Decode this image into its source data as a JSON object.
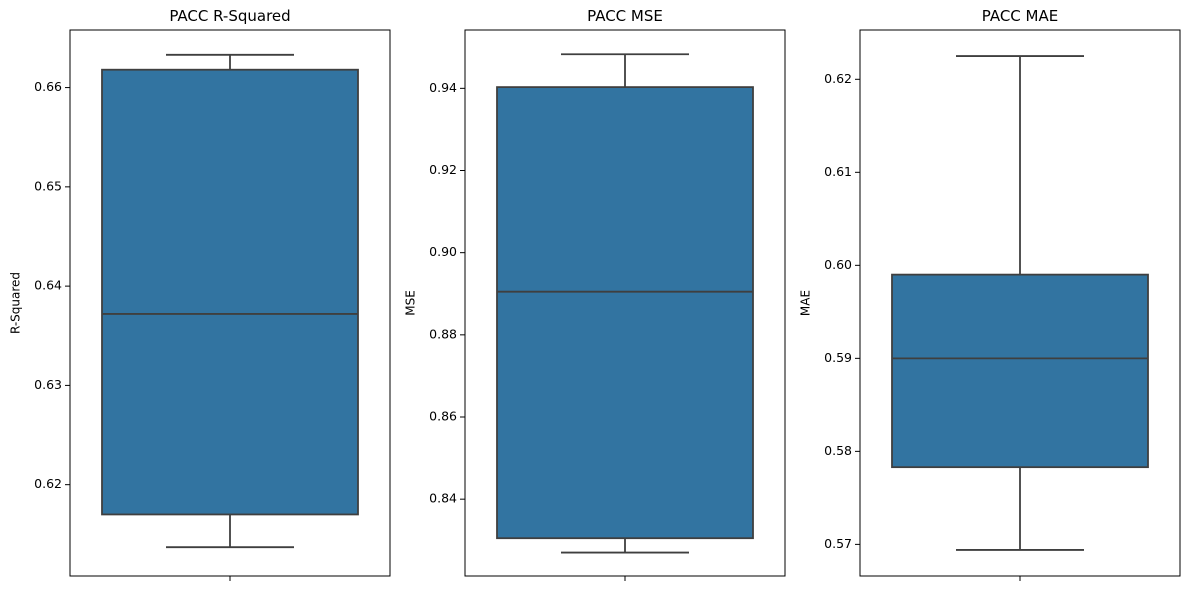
{
  "chart_data": [
    {
      "type": "box",
      "title": "PACC R-Squared",
      "ylabel": "R-Squared",
      "xlabel": "",
      "ylim": [
        0.6108,
        0.6658
      ],
      "yticks": [
        0.62,
        0.63,
        0.64,
        0.65,
        0.66
      ],
      "tick_labels": [
        "0.62",
        "0.63",
        "0.64",
        "0.65",
        "0.66"
      ],
      "box": {
        "whisker_low": 0.6137,
        "q1": 0.617,
        "median": 0.6372,
        "q3": 0.6618,
        "whisker_high": 0.6633
      },
      "color": "#3274a1"
    },
    {
      "type": "box",
      "title": "PACC MSE",
      "ylabel": "MSE",
      "xlabel": "",
      "ylim": [
        0.8213,
        0.9542
      ],
      "yticks": [
        0.84,
        0.86,
        0.88,
        0.9,
        0.92,
        0.94
      ],
      "tick_labels": [
        "0.84",
        "0.86",
        "0.88",
        "0.90",
        "0.92",
        "0.94"
      ],
      "box": {
        "whisker_low": 0.827,
        "q1": 0.8305,
        "median": 0.8905,
        "q3": 0.9403,
        "whisker_high": 0.9483
      },
      "color": "#3274a1"
    },
    {
      "type": "box",
      "title": "PACC MAE",
      "ylabel": "MAE",
      "xlabel": "",
      "ylim": [
        0.5666,
        0.6253
      ],
      "yticks": [
        0.57,
        0.58,
        0.59,
        0.6,
        0.61,
        0.62
      ],
      "tick_labels": [
        "0.57",
        "0.58",
        "0.59",
        "0.60",
        "0.61",
        "0.62"
      ],
      "box": {
        "whisker_low": 0.5694,
        "q1": 0.5783,
        "median": 0.59,
        "q3": 0.599,
        "whisker_high": 0.6225
      },
      "color": "#3274a1"
    }
  ]
}
